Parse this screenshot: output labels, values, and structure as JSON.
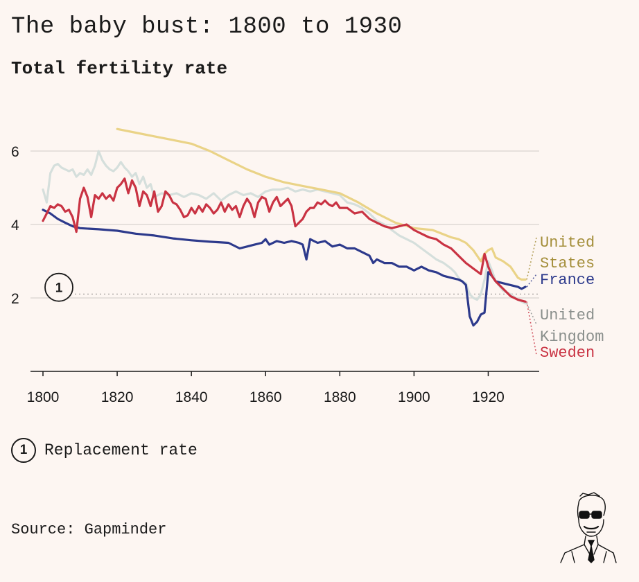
{
  "header": {
    "title": "The baby bust: 1800 to 1930",
    "subtitle": "Total fertility rate"
  },
  "notes": {
    "badge": "1",
    "replacement_label": "Replacement rate"
  },
  "footer": {
    "source": "Source: Gapminder"
  },
  "chart_data": {
    "type": "line",
    "title": "The baby bust: 1800 to 1930",
    "subtitle": "Total fertility rate",
    "xlabel": "",
    "ylabel": "",
    "xlim": [
      1800,
      1930
    ],
    "ylim": [
      0,
      6.9
    ],
    "xticks": [
      1800,
      1820,
      1840,
      1860,
      1880,
      1900,
      1920
    ],
    "yticks": [
      2,
      4,
      6
    ],
    "grid": true,
    "reference_line": {
      "y": 2.1,
      "label": "Replacement rate",
      "badge": "1"
    },
    "series": [
      {
        "name": "United Kingdom",
        "label": "United\nKingdom",
        "color": "#d5dfdc",
        "label_color": "#8a8f8c",
        "x": [
          1800,
          1801,
          1802,
          1803,
          1804,
          1805,
          1806,
          1807,
          1808,
          1809,
          1810,
          1811,
          1812,
          1813,
          1814,
          1815,
          1816,
          1817,
          1818,
          1819,
          1820,
          1821,
          1822,
          1823,
          1824,
          1825,
          1826,
          1827,
          1828,
          1829,
          1830,
          1832,
          1834,
          1836,
          1838,
          1840,
          1842,
          1844,
          1846,
          1848,
          1850,
          1852,
          1854,
          1856,
          1858,
          1860,
          1862,
          1864,
          1866,
          1868,
          1870,
          1872,
          1874,
          1876,
          1878,
          1880,
          1882,
          1884,
          1886,
          1888,
          1890,
          1892,
          1894,
          1896,
          1898,
          1900,
          1902,
          1904,
          1906,
          1908,
          1910,
          1911,
          1912,
          1913,
          1914,
          1915,
          1916,
          1917,
          1918,
          1919,
          1920,
          1921,
          1922,
          1924,
          1926,
          1928,
          1930
        ],
        "values": [
          4.95,
          4.6,
          5.4,
          5.6,
          5.65,
          5.55,
          5.5,
          5.45,
          5.5,
          5.3,
          5.4,
          5.35,
          5.5,
          5.35,
          5.6,
          6.0,
          5.75,
          5.6,
          5.5,
          5.45,
          5.55,
          5.7,
          5.55,
          5.45,
          5.3,
          5.4,
          5.1,
          5.3,
          5.0,
          5.1,
          4.75,
          4.85,
          4.8,
          4.85,
          4.75,
          4.85,
          4.8,
          4.7,
          4.85,
          4.65,
          4.8,
          4.9,
          4.8,
          4.85,
          4.75,
          4.9,
          4.95,
          4.95,
          5.0,
          4.9,
          4.95,
          4.9,
          4.95,
          4.9,
          4.85,
          4.8,
          4.6,
          4.55,
          4.45,
          4.3,
          4.1,
          4.0,
          3.85,
          3.7,
          3.6,
          3.5,
          3.35,
          3.2,
          3.05,
          2.95,
          2.8,
          2.7,
          2.55,
          2.45,
          2.4,
          2.1,
          2.0,
          1.95,
          2.1,
          2.5,
          3.0,
          2.75,
          2.45,
          2.2,
          2.1,
          1.95,
          1.85
        ]
      },
      {
        "name": "United States",
        "label": "United\nStates",
        "color": "#ead387",
        "label_color": "#a48e3a",
        "x": [
          1820,
          1825,
          1830,
          1835,
          1840,
          1845,
          1850,
          1855,
          1860,
          1865,
          1870,
          1875,
          1880,
          1885,
          1890,
          1895,
          1900,
          1905,
          1910,
          1912,
          1914,
          1916,
          1918,
          1919,
          1920,
          1921,
          1922,
          1924,
          1926,
          1928,
          1929,
          1930
        ],
        "values": [
          6.6,
          6.5,
          6.4,
          6.3,
          6.2,
          6.0,
          5.75,
          5.5,
          5.3,
          5.15,
          5.05,
          4.95,
          4.85,
          4.6,
          4.3,
          4.05,
          3.9,
          3.85,
          3.65,
          3.6,
          3.5,
          3.3,
          3.0,
          3.2,
          3.3,
          3.35,
          3.1,
          3.0,
          2.85,
          2.55,
          2.5,
          2.5
        ]
      },
      {
        "name": "France",
        "label": "France",
        "color": "#2d3a8c",
        "label_color": "#2d3a8c",
        "x": [
          1800,
          1802,
          1804,
          1806,
          1808,
          1810,
          1815,
          1820,
          1825,
          1830,
          1835,
          1840,
          1845,
          1850,
          1853,
          1855,
          1857,
          1859,
          1860,
          1861,
          1863,
          1865,
          1867,
          1869,
          1870,
          1871,
          1872,
          1874,
          1876,
          1878,
          1880,
          1882,
          1884,
          1886,
          1888,
          1889,
          1890,
          1892,
          1894,
          1896,
          1898,
          1900,
          1902,
          1904,
          1906,
          1908,
          1910,
          1912,
          1913,
          1914,
          1915,
          1916,
          1917,
          1918,
          1919,
          1920,
          1921,
          1922,
          1924,
          1926,
          1928,
          1929,
          1930
        ],
        "values": [
          4.4,
          4.3,
          4.15,
          4.05,
          3.95,
          3.9,
          3.87,
          3.83,
          3.75,
          3.7,
          3.62,
          3.57,
          3.53,
          3.5,
          3.35,
          3.4,
          3.45,
          3.5,
          3.6,
          3.45,
          3.55,
          3.5,
          3.55,
          3.5,
          3.45,
          3.05,
          3.6,
          3.5,
          3.55,
          3.4,
          3.45,
          3.35,
          3.35,
          3.25,
          3.15,
          2.95,
          3.05,
          2.95,
          2.95,
          2.85,
          2.85,
          2.75,
          2.85,
          2.75,
          2.7,
          2.6,
          2.55,
          2.5,
          2.45,
          2.35,
          1.5,
          1.25,
          1.35,
          1.55,
          1.6,
          2.7,
          2.6,
          2.45,
          2.4,
          2.35,
          2.3,
          2.25,
          2.3
        ]
      },
      {
        "name": "Sweden",
        "label": "Sweden",
        "color": "#c93343",
        "label_color": "#c93343",
        "x": [
          1800,
          1801,
          1802,
          1803,
          1804,
          1805,
          1806,
          1807,
          1808,
          1809,
          1810,
          1811,
          1812,
          1813,
          1814,
          1815,
          1816,
          1817,
          1818,
          1819,
          1820,
          1821,
          1822,
          1823,
          1824,
          1825,
          1826,
          1827,
          1828,
          1829,
          1830,
          1831,
          1832,
          1833,
          1834,
          1835,
          1836,
          1837,
          1838,
          1839,
          1840,
          1841,
          1842,
          1843,
          1844,
          1845,
          1846,
          1847,
          1848,
          1849,
          1850,
          1851,
          1852,
          1853,
          1854,
          1855,
          1856,
          1857,
          1858,
          1859,
          1860,
          1861,
          1862,
          1863,
          1864,
          1865,
          1866,
          1867,
          1868,
          1869,
          1870,
          1871,
          1872,
          1873,
          1874,
          1875,
          1876,
          1877,
          1878,
          1879,
          1880,
          1882,
          1884,
          1886,
          1888,
          1890,
          1892,
          1894,
          1896,
          1898,
          1900,
          1902,
          1904,
          1906,
          1908,
          1910,
          1912,
          1914,
          1916,
          1918,
          1919,
          1920,
          1921,
          1922,
          1924,
          1926,
          1928,
          1930
        ],
        "values": [
          4.1,
          4.3,
          4.5,
          4.45,
          4.55,
          4.5,
          4.35,
          4.4,
          4.2,
          3.8,
          4.7,
          5.0,
          4.75,
          4.2,
          4.8,
          4.7,
          4.85,
          4.7,
          4.8,
          4.65,
          5.0,
          5.1,
          5.25,
          4.85,
          5.2,
          5.0,
          4.5,
          4.9,
          4.8,
          4.5,
          4.9,
          4.35,
          4.5,
          4.9,
          4.8,
          4.6,
          4.55,
          4.4,
          4.2,
          4.25,
          4.45,
          4.3,
          4.5,
          4.35,
          4.55,
          4.45,
          4.3,
          4.4,
          4.6,
          4.35,
          4.55,
          4.4,
          4.5,
          4.2,
          4.5,
          4.7,
          4.55,
          4.2,
          4.6,
          4.75,
          4.7,
          4.35,
          4.6,
          4.75,
          4.5,
          4.6,
          4.7,
          4.5,
          3.95,
          4.05,
          4.15,
          4.35,
          4.45,
          4.45,
          4.6,
          4.55,
          4.65,
          4.55,
          4.5,
          4.6,
          4.45,
          4.45,
          4.3,
          4.35,
          4.15,
          4.05,
          3.95,
          3.9,
          3.95,
          4.0,
          3.85,
          3.75,
          3.65,
          3.6,
          3.45,
          3.35,
          3.15,
          2.95,
          2.8,
          2.65,
          3.2,
          2.85,
          2.6,
          2.45,
          2.25,
          2.05,
          1.95,
          1.9
        ]
      }
    ]
  }
}
